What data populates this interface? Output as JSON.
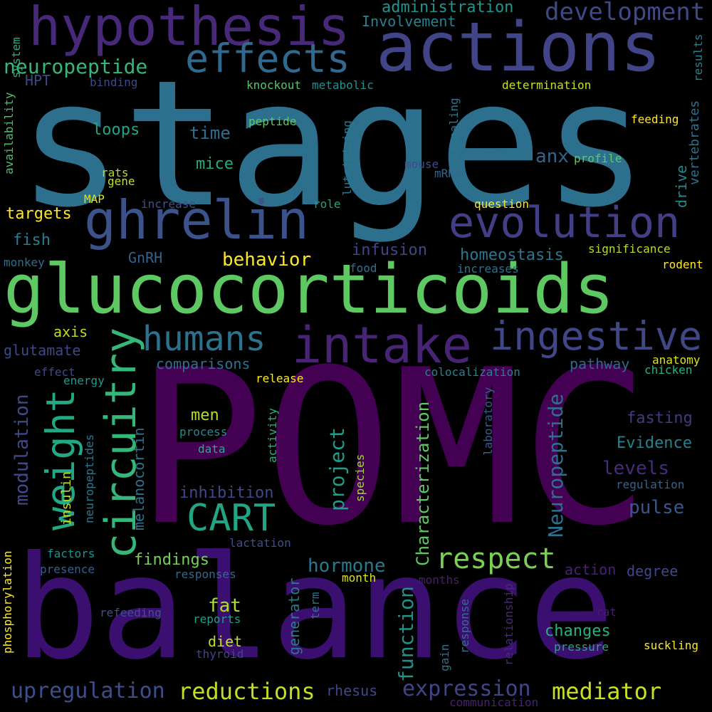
{
  "background": "#000000",
  "words": [
    {
      "text": "stages",
      "color": "#2d708e"
    },
    {
      "text": "POMC",
      "color": "#440154"
    },
    {
      "text": "balance",
      "color": "#3b0f70"
    },
    {
      "text": "glucocorticoids",
      "color": "#5ec962"
    },
    {
      "text": "actions",
      "color": "#414487"
    },
    {
      "text": "hypothesis",
      "color": "#482878"
    },
    {
      "text": "ghrelin",
      "color": "#3b528b"
    },
    {
      "text": "evolution",
      "color": "#433e85"
    },
    {
      "text": "effects",
      "color": "#31688e"
    },
    {
      "text": "intake",
      "color": "#482475"
    },
    {
      "text": "ingestive",
      "color": "#404788"
    },
    {
      "text": "circuitry",
      "color": "#35b779"
    },
    {
      "text": "weight",
      "color": "#22a884"
    },
    {
      "text": "humans",
      "color": "#2c728e"
    },
    {
      "text": "CART",
      "color": "#21a585"
    },
    {
      "text": "development",
      "color": "#3e4989"
    },
    {
      "text": "respect",
      "color": "#7ad151"
    },
    {
      "text": "reductions",
      "color": "#bddf26"
    },
    {
      "text": "mediator",
      "color": "#c8e020"
    },
    {
      "text": "upregulation",
      "color": "#3d4e8a"
    },
    {
      "text": "expression",
      "color": "#414487"
    },
    {
      "text": "Neuropeptide",
      "color": "#2c728e"
    },
    {
      "text": "project",
      "color": "#1f9e89"
    },
    {
      "text": "function",
      "color": "#21918c"
    },
    {
      "text": "neuropeptide",
      "color": "#35b779"
    },
    {
      "text": "modulation",
      "color": "#3e4a89"
    },
    {
      "text": "behavior",
      "color": "#fde725"
    },
    {
      "text": "Characterization",
      "color": "#5ec962"
    },
    {
      "text": "levels",
      "color": "#472c7a"
    },
    {
      "text": "pulse",
      "color": "#39568c"
    },
    {
      "text": "hormone",
      "color": "#2a788e"
    },
    {
      "text": "fat",
      "color": "#addc30"
    },
    {
      "text": "changes",
      "color": "#29af7f"
    },
    {
      "text": "Involvement",
      "color": "#26828e"
    },
    {
      "text": "administration",
      "color": "#1f958b"
    },
    {
      "text": "targets",
      "color": "#fde725"
    },
    {
      "text": "homeostasis",
      "color": "#2a768e"
    },
    {
      "text": "Evidence",
      "color": "#27808e"
    },
    {
      "text": "fasting",
      "color": "#453781"
    },
    {
      "text": "inhibition",
      "color": "#3f4889"
    },
    {
      "text": "time",
      "color": "#2d708e"
    },
    {
      "text": "loops",
      "color": "#20a386"
    },
    {
      "text": "mice",
      "color": "#25ab82"
    },
    {
      "text": "anx",
      "color": "#33638d"
    },
    {
      "text": "drive",
      "color": "#23898e"
    },
    {
      "text": "vertebrates",
      "color": "#2c718e"
    },
    {
      "text": "infusion",
      "color": "#414487"
    },
    {
      "text": "comparisons",
      "color": "#2e6f8e"
    },
    {
      "text": "pathway",
      "color": "#31688e"
    },
    {
      "text": "findings",
      "color": "#75d054"
    },
    {
      "text": "men",
      "color": "#b5de2b"
    },
    {
      "text": "diet",
      "color": "#c0df25"
    },
    {
      "text": "generator",
      "color": "#2a788e"
    },
    {
      "text": "fish",
      "color": "#297b8e"
    },
    {
      "text": "axis",
      "color": "#bade28"
    },
    {
      "text": "glutamate",
      "color": "#3f4788"
    },
    {
      "text": "action",
      "color": "#482173"
    },
    {
      "text": "degree",
      "color": "#3f4889"
    },
    {
      "text": "rhesus",
      "color": "#3e4989"
    },
    {
      "text": "melanocortin",
      "color": "#2c728e"
    },
    {
      "text": "GnRH",
      "color": "#33638d"
    },
    {
      "text": "HPT",
      "color": "#3e4989"
    },
    {
      "text": "monkey",
      "color": "#2f6c8e"
    },
    {
      "text": "insulin",
      "color": "#c2df23"
    },
    {
      "text": "neuropeptides",
      "color": "#2a788e"
    },
    {
      "text": "data",
      "color": "#27ad81"
    },
    {
      "text": "process",
      "color": "#238a8d"
    },
    {
      "text": "activity",
      "color": "#2ab07f"
    },
    {
      "text": "species",
      "color": "#a0da39"
    },
    {
      "text": "laboratory",
      "color": "#355f8d"
    },
    {
      "text": "colocalization",
      "color": "#26828e"
    },
    {
      "text": "release",
      "color": "#fde725"
    },
    {
      "text": "chicken",
      "color": "#2ab07f"
    },
    {
      "text": "anatomy",
      "color": "#dde318"
    },
    {
      "text": "regulation",
      "color": "#33638d"
    },
    {
      "text": "signaling",
      "color": "#2a788e"
    },
    {
      "text": "luteinizing",
      "color": "#29798e"
    },
    {
      "text": "mouse",
      "color": "#3e4a89"
    },
    {
      "text": "mRNA",
      "color": "#31688e"
    },
    {
      "text": "profile",
      "color": "#5ec962"
    },
    {
      "text": "feeding",
      "color": "#fde725"
    },
    {
      "text": "determination",
      "color": "#c8e020"
    },
    {
      "text": "knockout",
      "color": "#56c667"
    },
    {
      "text": "metabolic",
      "color": "#21918c"
    },
    {
      "text": "binding",
      "color": "#3e4a89"
    },
    {
      "text": "peptide",
      "color": "#5ec962"
    },
    {
      "text": "rats",
      "color": "#addc30"
    },
    {
      "text": "gene",
      "color": "#c2df23"
    },
    {
      "text": "MAP",
      "color": "#dde318"
    },
    {
      "text": "increase",
      "color": "#3b528b"
    },
    {
      "text": "role",
      "color": "#20a386"
    },
    {
      "text": "question",
      "color": "#fde725"
    },
    {
      "text": "significance",
      "color": "#b5de2b"
    },
    {
      "text": "rodent",
      "color": "#fde725"
    },
    {
      "text": "food",
      "color": "#2c728e"
    },
    {
      "text": "increases",
      "color": "#2c728e"
    },
    {
      "text": "system",
      "color": "#29af7f"
    },
    {
      "text": "results",
      "color": "#26828e"
    },
    {
      "text": "availability",
      "color": "#4ac16d"
    },
    {
      "text": "effect",
      "color": "#3e4a89"
    },
    {
      "text": "energy",
      "color": "#1f9a8a"
    },
    {
      "text": "lactation",
      "color": "#3d4e8a"
    },
    {
      "text": "factors",
      "color": "#21918c"
    },
    {
      "text": "presence",
      "color": "#355f8d"
    },
    {
      "text": "responses",
      "color": "#30698e"
    },
    {
      "text": "month",
      "color": "#dde318"
    },
    {
      "text": "months",
      "color": "#481f70"
    },
    {
      "text": "term",
      "color": "#2c728e"
    },
    {
      "text": "refeeding",
      "color": "#3b528b"
    },
    {
      "text": "reports",
      "color": "#1f9e89"
    },
    {
      "text": "thyroid",
      "color": "#404688"
    },
    {
      "text": "gain",
      "color": "#2c728e"
    },
    {
      "text": "response",
      "color": "#2c728e"
    },
    {
      "text": "relationship",
      "color": "#472a7a"
    },
    {
      "text": "rat",
      "color": "#481c6e"
    },
    {
      "text": "pressure",
      "color": "#22a884"
    },
    {
      "text": "suckling",
      "color": "#fde725"
    },
    {
      "text": "phosphorylation",
      "color": "#fde725"
    },
    {
      "text": "communication",
      "color": "#482071"
    }
  ]
}
